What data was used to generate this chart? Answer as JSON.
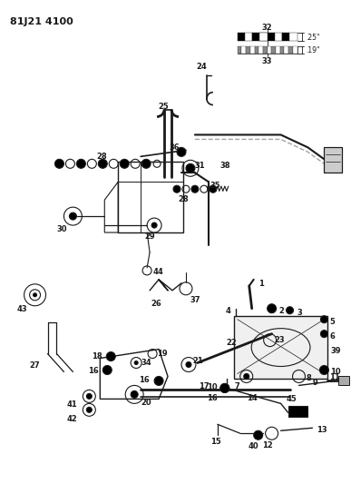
{
  "title": "81J21 4100",
  "bg_color": "#ffffff",
  "line_color": "#1a1a1a",
  "figsize": [
    3.87,
    5.33
  ],
  "dpi": 100
}
